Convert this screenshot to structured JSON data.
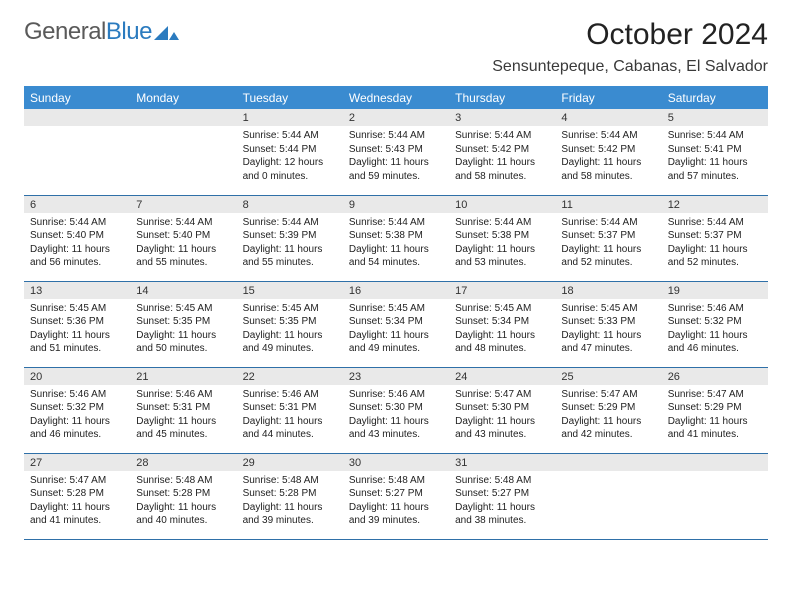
{
  "logo": {
    "part1": "General",
    "part2": "Blue"
  },
  "title": "October 2024",
  "location": "Sensuntepeque, Cabanas, El Salvador",
  "colors": {
    "header_bg": "#3a8bd0",
    "header_fg": "#ffffff",
    "daynum_bg": "#e9e9e9",
    "row_border": "#2f70a8",
    "logo_grey": "#5a5a5a",
    "logo_blue": "#2b7bbf"
  },
  "weekdays": [
    "Sunday",
    "Monday",
    "Tuesday",
    "Wednesday",
    "Thursday",
    "Friday",
    "Saturday"
  ],
  "weeks": [
    [
      null,
      null,
      {
        "n": "1",
        "sr": "5:44 AM",
        "ss": "5:44 PM",
        "dl": "12 hours and 0 minutes."
      },
      {
        "n": "2",
        "sr": "5:44 AM",
        "ss": "5:43 PM",
        "dl": "11 hours and 59 minutes."
      },
      {
        "n": "3",
        "sr": "5:44 AM",
        "ss": "5:42 PM",
        "dl": "11 hours and 58 minutes."
      },
      {
        "n": "4",
        "sr": "5:44 AM",
        "ss": "5:42 PM",
        "dl": "11 hours and 58 minutes."
      },
      {
        "n": "5",
        "sr": "5:44 AM",
        "ss": "5:41 PM",
        "dl": "11 hours and 57 minutes."
      }
    ],
    [
      {
        "n": "6",
        "sr": "5:44 AM",
        "ss": "5:40 PM",
        "dl": "11 hours and 56 minutes."
      },
      {
        "n": "7",
        "sr": "5:44 AM",
        "ss": "5:40 PM",
        "dl": "11 hours and 55 minutes."
      },
      {
        "n": "8",
        "sr": "5:44 AM",
        "ss": "5:39 PM",
        "dl": "11 hours and 55 minutes."
      },
      {
        "n": "9",
        "sr": "5:44 AM",
        "ss": "5:38 PM",
        "dl": "11 hours and 54 minutes."
      },
      {
        "n": "10",
        "sr": "5:44 AM",
        "ss": "5:38 PM",
        "dl": "11 hours and 53 minutes."
      },
      {
        "n": "11",
        "sr": "5:44 AM",
        "ss": "5:37 PM",
        "dl": "11 hours and 52 minutes."
      },
      {
        "n": "12",
        "sr": "5:44 AM",
        "ss": "5:37 PM",
        "dl": "11 hours and 52 minutes."
      }
    ],
    [
      {
        "n": "13",
        "sr": "5:45 AM",
        "ss": "5:36 PM",
        "dl": "11 hours and 51 minutes."
      },
      {
        "n": "14",
        "sr": "5:45 AM",
        "ss": "5:35 PM",
        "dl": "11 hours and 50 minutes."
      },
      {
        "n": "15",
        "sr": "5:45 AM",
        "ss": "5:35 PM",
        "dl": "11 hours and 49 minutes."
      },
      {
        "n": "16",
        "sr": "5:45 AM",
        "ss": "5:34 PM",
        "dl": "11 hours and 49 minutes."
      },
      {
        "n": "17",
        "sr": "5:45 AM",
        "ss": "5:34 PM",
        "dl": "11 hours and 48 minutes."
      },
      {
        "n": "18",
        "sr": "5:45 AM",
        "ss": "5:33 PM",
        "dl": "11 hours and 47 minutes."
      },
      {
        "n": "19",
        "sr": "5:46 AM",
        "ss": "5:32 PM",
        "dl": "11 hours and 46 minutes."
      }
    ],
    [
      {
        "n": "20",
        "sr": "5:46 AM",
        "ss": "5:32 PM",
        "dl": "11 hours and 46 minutes."
      },
      {
        "n": "21",
        "sr": "5:46 AM",
        "ss": "5:31 PM",
        "dl": "11 hours and 45 minutes."
      },
      {
        "n": "22",
        "sr": "5:46 AM",
        "ss": "5:31 PM",
        "dl": "11 hours and 44 minutes."
      },
      {
        "n": "23",
        "sr": "5:46 AM",
        "ss": "5:30 PM",
        "dl": "11 hours and 43 minutes."
      },
      {
        "n": "24",
        "sr": "5:47 AM",
        "ss": "5:30 PM",
        "dl": "11 hours and 43 minutes."
      },
      {
        "n": "25",
        "sr": "5:47 AM",
        "ss": "5:29 PM",
        "dl": "11 hours and 42 minutes."
      },
      {
        "n": "26",
        "sr": "5:47 AM",
        "ss": "5:29 PM",
        "dl": "11 hours and 41 minutes."
      }
    ],
    [
      {
        "n": "27",
        "sr": "5:47 AM",
        "ss": "5:28 PM",
        "dl": "11 hours and 41 minutes."
      },
      {
        "n": "28",
        "sr": "5:48 AM",
        "ss": "5:28 PM",
        "dl": "11 hours and 40 minutes."
      },
      {
        "n": "29",
        "sr": "5:48 AM",
        "ss": "5:28 PM",
        "dl": "11 hours and 39 minutes."
      },
      {
        "n": "30",
        "sr": "5:48 AM",
        "ss": "5:27 PM",
        "dl": "11 hours and 39 minutes."
      },
      {
        "n": "31",
        "sr": "5:48 AM",
        "ss": "5:27 PM",
        "dl": "11 hours and 38 minutes."
      },
      null,
      null
    ]
  ],
  "labels": {
    "sunrise": "Sunrise:",
    "sunset": "Sunset:",
    "daylight": "Daylight:"
  }
}
